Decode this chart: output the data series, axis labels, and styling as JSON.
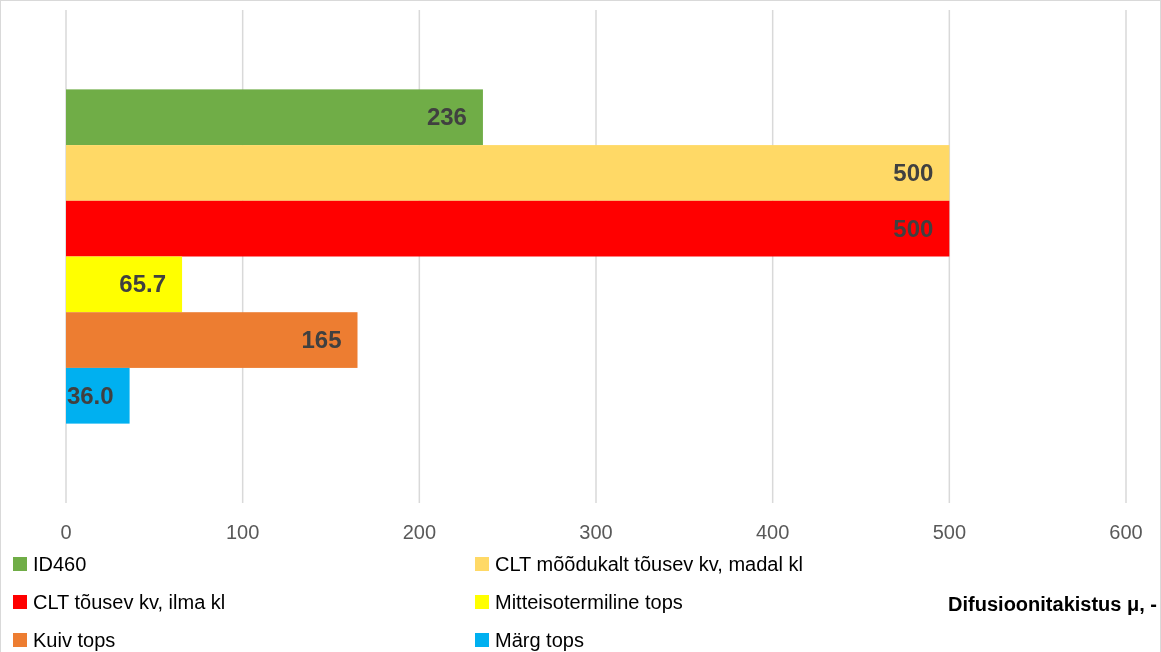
{
  "chart_data": {
    "type": "bar",
    "orientation": "horizontal",
    "xlabel": "Difusioonitakistus μ, -",
    "categories": [
      null
    ],
    "series": [
      {
        "name": "ID460",
        "color": "#70ad47",
        "values": [
          236
        ],
        "value_labels": [
          "236"
        ]
      },
      {
        "name": "CLT mõõdukalt tõusev kv, madal kl",
        "color": "#ffd966",
        "values": [
          500
        ],
        "value_labels": [
          "500"
        ]
      },
      {
        "name": "CLT tõusev kv, ilma kl",
        "color": "#ff0000",
        "values": [
          500
        ],
        "value_labels": [
          "500"
        ]
      },
      {
        "name": "Mitteisotermiline tops",
        "color": "#ffff00",
        "values": [
          65.7
        ],
        "value_labels": [
          "65.7"
        ]
      },
      {
        "name": "Kuiv tops",
        "color": "#ed7d31",
        "values": [
          165
        ],
        "value_labels": [
          "165"
        ]
      },
      {
        "name": "Märg tops",
        "color": "#00b0f0",
        "values": [
          36.0
        ],
        "value_labels": [
          "36.0"
        ]
      }
    ],
    "xlim": [
      0,
      600
    ],
    "xticks": [
      0,
      100,
      200,
      300,
      400,
      500,
      600
    ],
    "grid": "x",
    "legend": "bottom"
  }
}
